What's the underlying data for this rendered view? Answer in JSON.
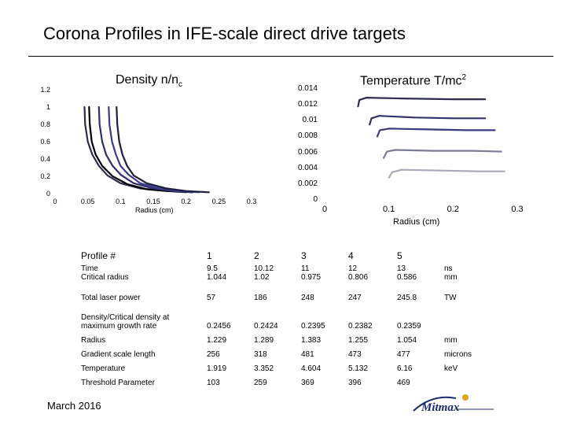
{
  "slide": {
    "title": "Corona Profiles in IFE-scale direct drive targets",
    "footer": "March 2016",
    "logo_text": "Mitmax"
  },
  "chart_data": [
    {
      "type": "line",
      "title_main": "Density n/n",
      "title_sub": "c",
      "xlabel": "Radius (cm)",
      "ylabel": "",
      "xlim": [
        0,
        0.3
      ],
      "ylim": [
        0,
        1.2
      ],
      "x_ticks": [
        "0",
        "0.05",
        "0.1",
        "0.15",
        "0.2",
        "0.25",
        "0.3"
      ],
      "y_ticks": [
        "0",
        "0.2",
        "0.4",
        "0.6",
        "0.8",
        "1",
        "1.2"
      ],
      "grid": false,
      "series": [
        {
          "color": "#2b2b50",
          "points": [
            [
              0.045,
              1.0
            ],
            [
              0.046,
              0.8
            ],
            [
              0.05,
              0.6
            ],
            [
              0.057,
              0.45
            ],
            [
              0.067,
              0.32
            ],
            [
              0.08,
              0.21
            ],
            [
              0.1,
              0.12
            ],
            [
              0.13,
              0.06
            ],
            [
              0.17,
              0.03
            ],
            [
              0.2,
              0.015
            ]
          ]
        },
        {
          "color": "#000000",
          "points": [
            [
              0.052,
              1.0
            ],
            [
              0.053,
              0.8
            ],
            [
              0.056,
              0.6
            ],
            [
              0.062,
              0.45
            ],
            [
              0.072,
              0.32
            ],
            [
              0.088,
              0.2
            ],
            [
              0.11,
              0.11
            ],
            [
              0.14,
              0.05
            ],
            [
              0.17,
              0.03
            ],
            [
              0.21,
              0.015
            ]
          ]
        },
        {
          "color": "#2f2f6b",
          "points": [
            [
              0.067,
              1.0
            ],
            [
              0.068,
              0.8
            ],
            [
              0.072,
              0.6
            ],
            [
              0.078,
              0.45
            ],
            [
              0.088,
              0.32
            ],
            [
              0.1,
              0.22
            ],
            [
              0.12,
              0.12
            ],
            [
              0.15,
              0.06
            ],
            [
              0.18,
              0.03
            ],
            [
              0.21,
              0.015
            ]
          ]
        },
        {
          "color": "#3c3c8a",
          "points": [
            [
              0.082,
              1.0
            ],
            [
              0.083,
              0.8
            ],
            [
              0.087,
              0.6
            ],
            [
              0.093,
              0.45
            ],
            [
              0.1,
              0.32
            ],
            [
              0.112,
              0.22
            ],
            [
              0.13,
              0.12
            ],
            [
              0.16,
              0.06
            ],
            [
              0.19,
              0.03
            ],
            [
              0.22,
              0.015
            ]
          ]
        },
        {
          "color": "#1e1e40",
          "points": [
            [
              0.094,
              1.0
            ],
            [
              0.095,
              0.8
            ],
            [
              0.098,
              0.6
            ],
            [
              0.103,
              0.45
            ],
            [
              0.11,
              0.32
            ],
            [
              0.12,
              0.21
            ],
            [
              0.14,
              0.12
            ],
            [
              0.17,
              0.06
            ],
            [
              0.2,
              0.03
            ],
            [
              0.235,
              0.015
            ]
          ]
        }
      ]
    },
    {
      "type": "line",
      "title_main": "Temperature T/mc",
      "title_sup": "2",
      "xlabel": "Radius (cm)",
      "ylabel": "",
      "xlim": [
        0,
        0.3
      ],
      "ylim": [
        0,
        0.014
      ],
      "x_ticks": [
        "0",
        "0.1",
        "0.2",
        "0.3"
      ],
      "y_ticks": [
        "0",
        "0.002",
        "0.004",
        "0.006",
        "0.008",
        "0.01",
        "0.012",
        "0.014"
      ],
      "grid": false,
      "series": [
        {
          "color": "#2b2b55",
          "points": [
            [
              0.052,
              0.0118
            ],
            [
              0.054,
              0.0126
            ],
            [
              0.065,
              0.0129
            ],
            [
              0.12,
              0.0128
            ],
            [
              0.2,
              0.0127
            ],
            [
              0.25,
              0.0127
            ]
          ]
        },
        {
          "color": "#32326a",
          "points": [
            [
              0.07,
              0.0095
            ],
            [
              0.073,
              0.0103
            ],
            [
              0.085,
              0.0106
            ],
            [
              0.14,
              0.0104
            ],
            [
              0.2,
              0.0103
            ],
            [
              0.25,
              0.0103
            ]
          ]
        },
        {
          "color": "#3a3a80",
          "points": [
            [
              0.082,
              0.008
            ],
            [
              0.086,
              0.0088
            ],
            [
              0.1,
              0.009
            ],
            [
              0.16,
              0.0089
            ],
            [
              0.22,
              0.0088
            ],
            [
              0.265,
              0.0088
            ]
          ]
        },
        {
          "color": "#7a7a9a",
          "points": [
            [
              0.092,
              0.0053
            ],
            [
              0.097,
              0.0061
            ],
            [
              0.11,
              0.0063
            ],
            [
              0.17,
              0.0062
            ],
            [
              0.23,
              0.0062
            ],
            [
              0.275,
              0.0061
            ]
          ]
        },
        {
          "color": "#a9a9b9",
          "points": [
            [
              0.1,
              0.0028
            ],
            [
              0.105,
              0.0035
            ],
            [
              0.12,
              0.0038
            ],
            [
              0.18,
              0.0037
            ],
            [
              0.24,
              0.0036
            ],
            [
              0.28,
              0.0036
            ]
          ]
        }
      ]
    }
  ],
  "table": {
    "rows": [
      {
        "label": "Profile #",
        "values": [
          "1",
          "2",
          "3",
          "4",
          "5"
        ],
        "unit": ""
      },
      {
        "label": "Time\nCritical radius",
        "values": [
          "9.5\n1.044",
          "10.12\n1.02",
          "11\n0.975",
          "12\n0.806",
          "13\n0.586"
        ],
        "unit": "ns\nmm"
      },
      {
        "label": "Total laser power",
        "values": [
          "57",
          "186",
          "248",
          "247",
          "245.8"
        ],
        "unit": "TW"
      },
      {
        "label": "Density/Critical density at\nmaximum growth rate",
        "values": [
          "0.2456",
          "0.2424",
          "0.2395",
          "0.2382",
          "0.2359"
        ],
        "unit": ""
      },
      {
        "label": "Radius",
        "values": [
          "1.229",
          "1.289",
          "1.383",
          "1.255",
          "1.054"
        ],
        "unit": "mm"
      },
      {
        "label": "Gradient scale length",
        "values": [
          "256",
          "318",
          "481",
          "473",
          "477"
        ],
        "unit": "microns"
      },
      {
        "label": "Temperature",
        "values": [
          "1.919",
          "3.352",
          "4.604",
          "5.132",
          "6.16"
        ],
        "unit": "keV"
      },
      {
        "label": "Threshold Parameter",
        "values": [
          "103",
          "259",
          "369",
          "396",
          "469"
        ],
        "unit": ""
      }
    ]
  }
}
